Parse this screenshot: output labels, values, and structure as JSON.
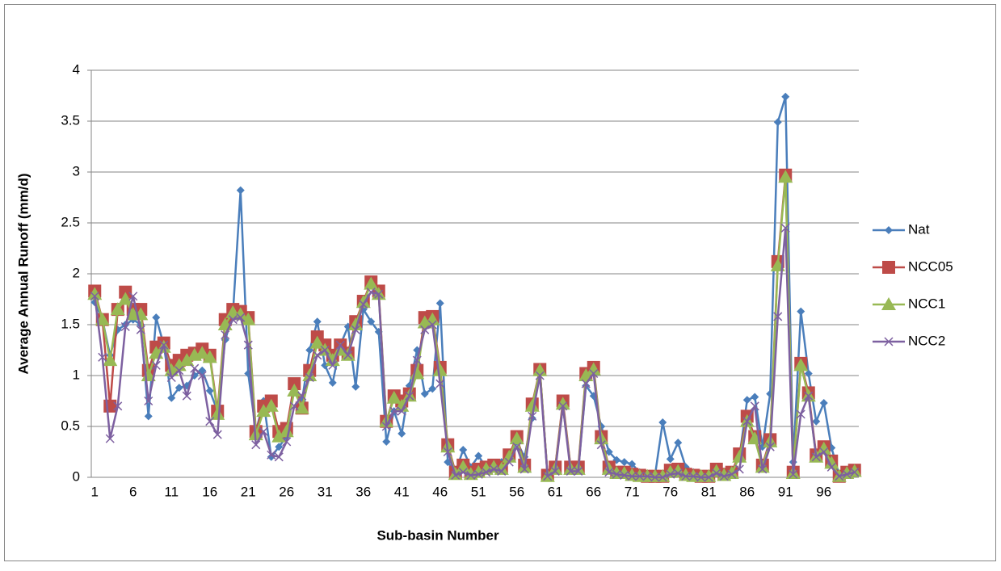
{
  "chart_data": {
    "type": "line",
    "x_label": "Sub-basin Number",
    "y_label": "Average Annual Runoff (mm/d)",
    "categories": [
      1,
      null,
      null,
      null,
      null,
      6,
      null,
      null,
      null,
      null,
      11,
      null,
      null,
      null,
      null,
      16,
      null,
      null,
      null,
      null,
      21,
      null,
      null,
      null,
      null,
      26,
      null,
      null,
      null,
      null,
      31,
      null,
      null,
      null,
      null,
      36,
      null,
      null,
      null,
      null,
      41,
      null,
      null,
      null,
      null,
      46,
      null,
      null,
      null,
      null,
      51,
      null,
      null,
      null,
      null,
      56,
      null,
      null,
      null,
      null,
      61,
      null,
      null,
      null,
      null,
      66,
      null,
      null,
      null,
      null,
      71,
      null,
      null,
      null,
      null,
      76,
      null,
      null,
      null,
      null,
      81,
      null,
      null,
      null,
      null,
      86,
      null,
      null,
      null,
      null,
      91,
      null,
      null,
      null,
      null,
      96,
      null,
      null,
      null,
      null
    ],
    "ylim": [
      0,
      4
    ],
    "yticks": [
      0,
      0.5,
      1,
      1.5,
      2,
      2.5,
      3,
      3.5,
      4
    ],
    "grid": true,
    "legend": "right",
    "series": [
      {
        "name": "Nat",
        "color": "#4a7ebb",
        "marker": "diamond",
        "values": [
          1.72,
          1.55,
          1.2,
          1.45,
          1.5,
          1.55,
          1.5,
          0.6,
          1.57,
          1.3,
          0.78,
          0.88,
          0.9,
          1.0,
          1.05,
          0.85,
          0.65,
          1.35,
          1.6,
          2.82,
          1.02,
          0.45,
          0.75,
          0.2,
          0.3,
          0.4,
          0.9,
          0.75,
          1.25,
          1.53,
          1.1,
          0.93,
          1.3,
          1.48,
          0.89,
          1.65,
          1.53,
          1.43,
          0.35,
          0.65,
          0.43,
          0.9,
          1.25,
          0.82,
          0.87,
          1.71,
          0.15,
          0.05,
          0.27,
          0.1,
          0.21,
          0.1,
          0.1,
          0.15,
          0.2,
          0.35,
          0.2,
          0.58,
          1.05,
          0.02,
          0.1,
          0.7,
          0.1,
          0.07,
          0.9,
          0.8,
          0.5,
          0.25,
          0.17,
          0.15,
          0.13,
          0.05,
          0.03,
          0.02,
          0.54,
          0.18,
          0.34,
          0.1,
          0.05,
          0.02,
          0.02,
          0.1,
          0.05,
          0.05,
          0.2,
          0.76,
          0.79,
          0.3,
          0.82,
          3.49,
          3.74,
          0.15,
          1.63,
          1.02,
          0.55,
          0.73,
          0.29,
          0.02,
          0.05,
          0.05
        ]
      },
      {
        "name": "NCC05",
        "color": "#be4b48",
        "marker": "square",
        "values": [
          1.83,
          1.55,
          0.7,
          1.65,
          1.82,
          1.65,
          1.65,
          1.05,
          1.28,
          1.32,
          1.1,
          1.15,
          1.2,
          1.22,
          1.26,
          1.2,
          0.65,
          1.55,
          1.65,
          1.63,
          1.57,
          0.45,
          0.7,
          0.75,
          0.45,
          0.48,
          0.92,
          0.68,
          1.05,
          1.38,
          1.3,
          1.2,
          1.3,
          1.22,
          1.53,
          1.73,
          1.92,
          1.83,
          0.55,
          0.8,
          0.75,
          0.82,
          1.05,
          1.57,
          1.58,
          1.08,
          0.32,
          0.05,
          0.12,
          0.05,
          0.08,
          0.1,
          0.12,
          0.1,
          0.22,
          0.4,
          0.12,
          0.72,
          1.06,
          0.02,
          0.1,
          0.75,
          0.1,
          0.1,
          1.02,
          1.08,
          0.4,
          0.1,
          0.05,
          0.05,
          0.03,
          0.02,
          0.01,
          0.01,
          0.01,
          0.07,
          0.08,
          0.03,
          0.02,
          0.01,
          0.01,
          0.08,
          0.03,
          0.05,
          0.23,
          0.6,
          0.4,
          0.12,
          0.37,
          2.12,
          2.97,
          0.05,
          1.12,
          0.83,
          0.22,
          0.3,
          0.16,
          0.01,
          0.05,
          0.07
        ]
      },
      {
        "name": "NCC1",
        "color": "#98b954",
        "marker": "triangle",
        "values": [
          1.8,
          1.55,
          1.15,
          1.65,
          1.75,
          1.6,
          1.6,
          1.0,
          1.22,
          1.28,
          1.05,
          1.1,
          1.15,
          1.2,
          1.22,
          1.18,
          0.62,
          1.5,
          1.62,
          1.6,
          1.55,
          0.42,
          0.65,
          0.7,
          0.4,
          0.45,
          0.85,
          0.68,
          1.0,
          1.32,
          1.25,
          1.15,
          1.25,
          1.2,
          1.5,
          1.72,
          1.9,
          1.8,
          0.55,
          0.78,
          0.7,
          0.8,
          1.02,
          1.52,
          1.55,
          1.05,
          0.3,
          0.03,
          0.1,
          0.03,
          0.05,
          0.08,
          0.1,
          0.08,
          0.2,
          0.38,
          0.1,
          0.7,
          1.05,
          0.01,
          0.08,
          0.72,
          0.08,
          0.08,
          1.0,
          1.06,
          0.38,
          0.08,
          0.04,
          0.04,
          0.02,
          0.01,
          0.01,
          0.01,
          0.01,
          0.05,
          0.06,
          0.02,
          0.01,
          0.01,
          0.01,
          0.06,
          0.02,
          0.04,
          0.2,
          0.55,
          0.38,
          0.1,
          0.35,
          2.08,
          2.95,
          0.04,
          1.1,
          0.8,
          0.2,
          0.28,
          0.14,
          0.01,
          0.04,
          0.06
        ]
      },
      {
        "name": "NCC2",
        "color": "#7d60a0",
        "marker": "x",
        "values": [
          1.78,
          1.18,
          0.38,
          0.7,
          1.48,
          1.78,
          1.45,
          0.75,
          1.1,
          1.3,
          0.98,
          1.05,
          0.8,
          1.07,
          1.0,
          0.55,
          0.42,
          1.4,
          1.55,
          1.57,
          1.3,
          0.32,
          0.45,
          0.22,
          0.2,
          0.35,
          0.7,
          0.8,
          0.98,
          1.2,
          1.25,
          1.1,
          1.3,
          1.2,
          1.45,
          1.7,
          1.82,
          1.8,
          0.5,
          0.65,
          0.65,
          0.8,
          1.15,
          1.45,
          1.5,
          0.92,
          0.25,
          0.02,
          0.05,
          0.02,
          0.03,
          0.05,
          0.08,
          0.06,
          0.15,
          0.3,
          0.08,
          0.6,
          1.0,
          0.01,
          0.06,
          0.7,
          0.06,
          0.06,
          0.92,
          1.02,
          0.32,
          0.05,
          0.03,
          0.02,
          0.01,
          0.01,
          0.01,
          0,
          0,
          0.03,
          0.04,
          0.01,
          0.01,
          0,
          0,
          0.04,
          0.01,
          0.03,
          0.08,
          0.55,
          0.7,
          0.08,
          0.3,
          1.58,
          2.45,
          0.03,
          0.62,
          0.8,
          0.2,
          0.25,
          0.1,
          0.01,
          0.03,
          0.05
        ]
      }
    ]
  }
}
